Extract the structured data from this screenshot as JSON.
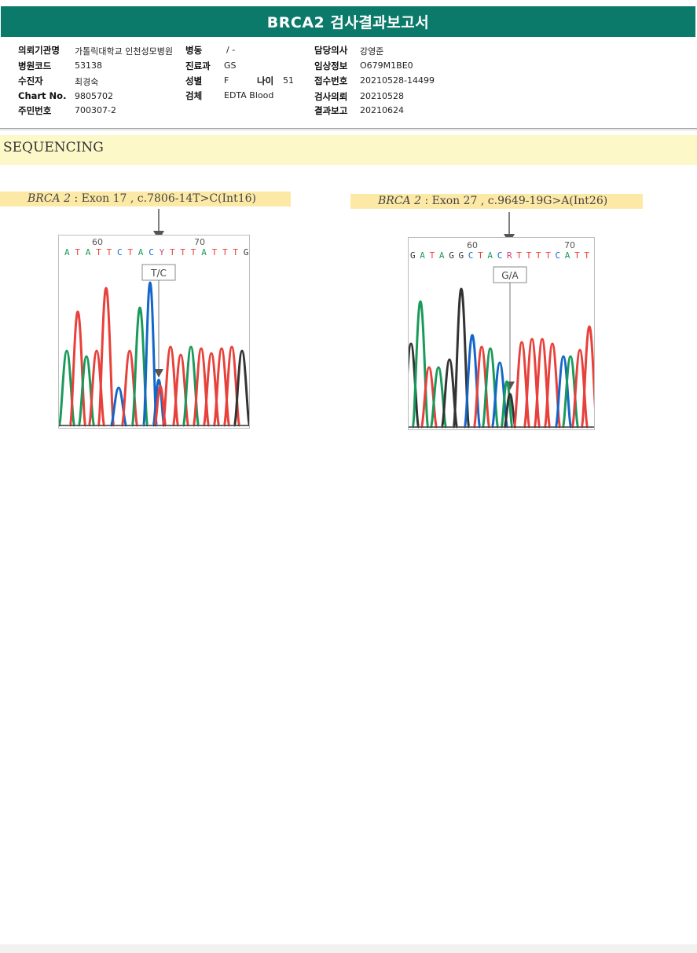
{
  "report": {
    "title": "BRCA2 검사결과보고서"
  },
  "patient_info": {
    "left": [
      {
        "label": "의뢰기관명",
        "value": "가톨릭대학교 인천성모병원"
      },
      {
        "label": "병원코드",
        "value": "53138"
      },
      {
        "label": "수진자",
        "value": "최경숙"
      },
      {
        "label": "Chart No.",
        "value": "9805702"
      },
      {
        "label": "주민번호",
        "value": "700307-2"
      }
    ],
    "middle": [
      {
        "label": "병동",
        "value": "/ -"
      },
      {
        "label": "진료과",
        "value": "GS"
      },
      {
        "label": "성별",
        "value": "F"
      },
      {
        "label": "검체",
        "value": "EDTA Blood"
      }
    ],
    "age": {
      "label": "나이",
      "value": "51"
    },
    "right": [
      {
        "label": "담당의사",
        "value": "강영준"
      },
      {
        "label": "임상정보",
        "value": "O679M1BE0"
      },
      {
        "label": "접수번호",
        "value": "20210528-14499"
      },
      {
        "label": "검사의뢰",
        "value": "20210528"
      },
      {
        "label": "결과보고",
        "value": "20210624"
      }
    ]
  },
  "section": {
    "title": "SEQUENCING"
  },
  "variants": [
    {
      "gene": "BRCA 2",
      "detail": ": Exon 17 , c.7806-14T>C(Int16)",
      "tick_left": "60",
      "tick_right": "70",
      "sequence": "ATATTCTACYTTTATTTG",
      "call": "T/C"
    },
    {
      "gene": "BRCA 2",
      "detail": ": Exon 27 , c.9649-19G>A(Int26)",
      "tick_left": "60",
      "tick_right": "70",
      "sequence": "GATAGGCTACRTTTTCATT",
      "call": "G/A"
    }
  ],
  "colors": {
    "header": "#0b7a6a",
    "band": "#fdf8c8",
    "caption": "#fde9a6",
    "A": "#1a9a5a",
    "C": "#1466c8",
    "G": "#333333",
    "T": "#e8403a",
    "ambiguous": "#d0407a"
  }
}
